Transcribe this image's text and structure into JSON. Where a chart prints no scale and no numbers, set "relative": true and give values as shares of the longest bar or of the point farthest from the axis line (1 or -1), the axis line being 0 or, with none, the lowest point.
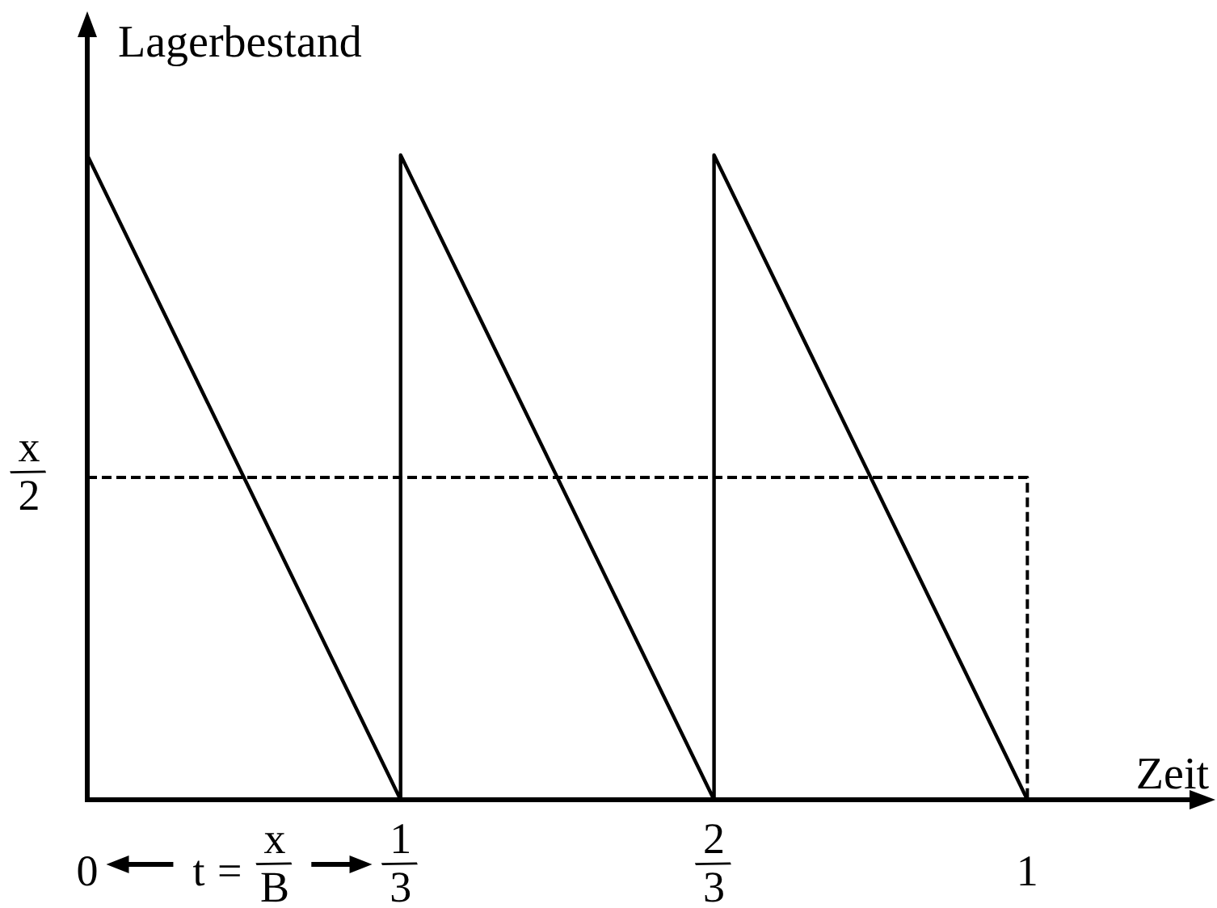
{
  "chart_data": {
    "type": "line",
    "xlabel": "Zeit",
    "ylabel": "Lagerbestand",
    "relative": true,
    "xlim": [
      0,
      1.2
    ],
    "xticks": [
      0,
      {
        "value": 0.3333,
        "label": "1/3"
      },
      {
        "value": 0.6667,
        "label": "2/3"
      },
      1
    ],
    "annotations": [
      "t = x/B"
    ],
    "series": [
      {
        "color": "#000000",
        "line_style": "solid",
        "x": [
          0,
          0.3333,
          0.3333,
          0.6667,
          0.6667,
          1
        ],
        "values": [
          1,
          0,
          1,
          0,
          1,
          0
        ]
      },
      {
        "name": "x/2",
        "color": "#000000",
        "line_style": "dashed",
        "x": [
          0,
          1,
          1
        ],
        "values": [
          0.5,
          0.5,
          0
        ]
      }
    ]
  }
}
